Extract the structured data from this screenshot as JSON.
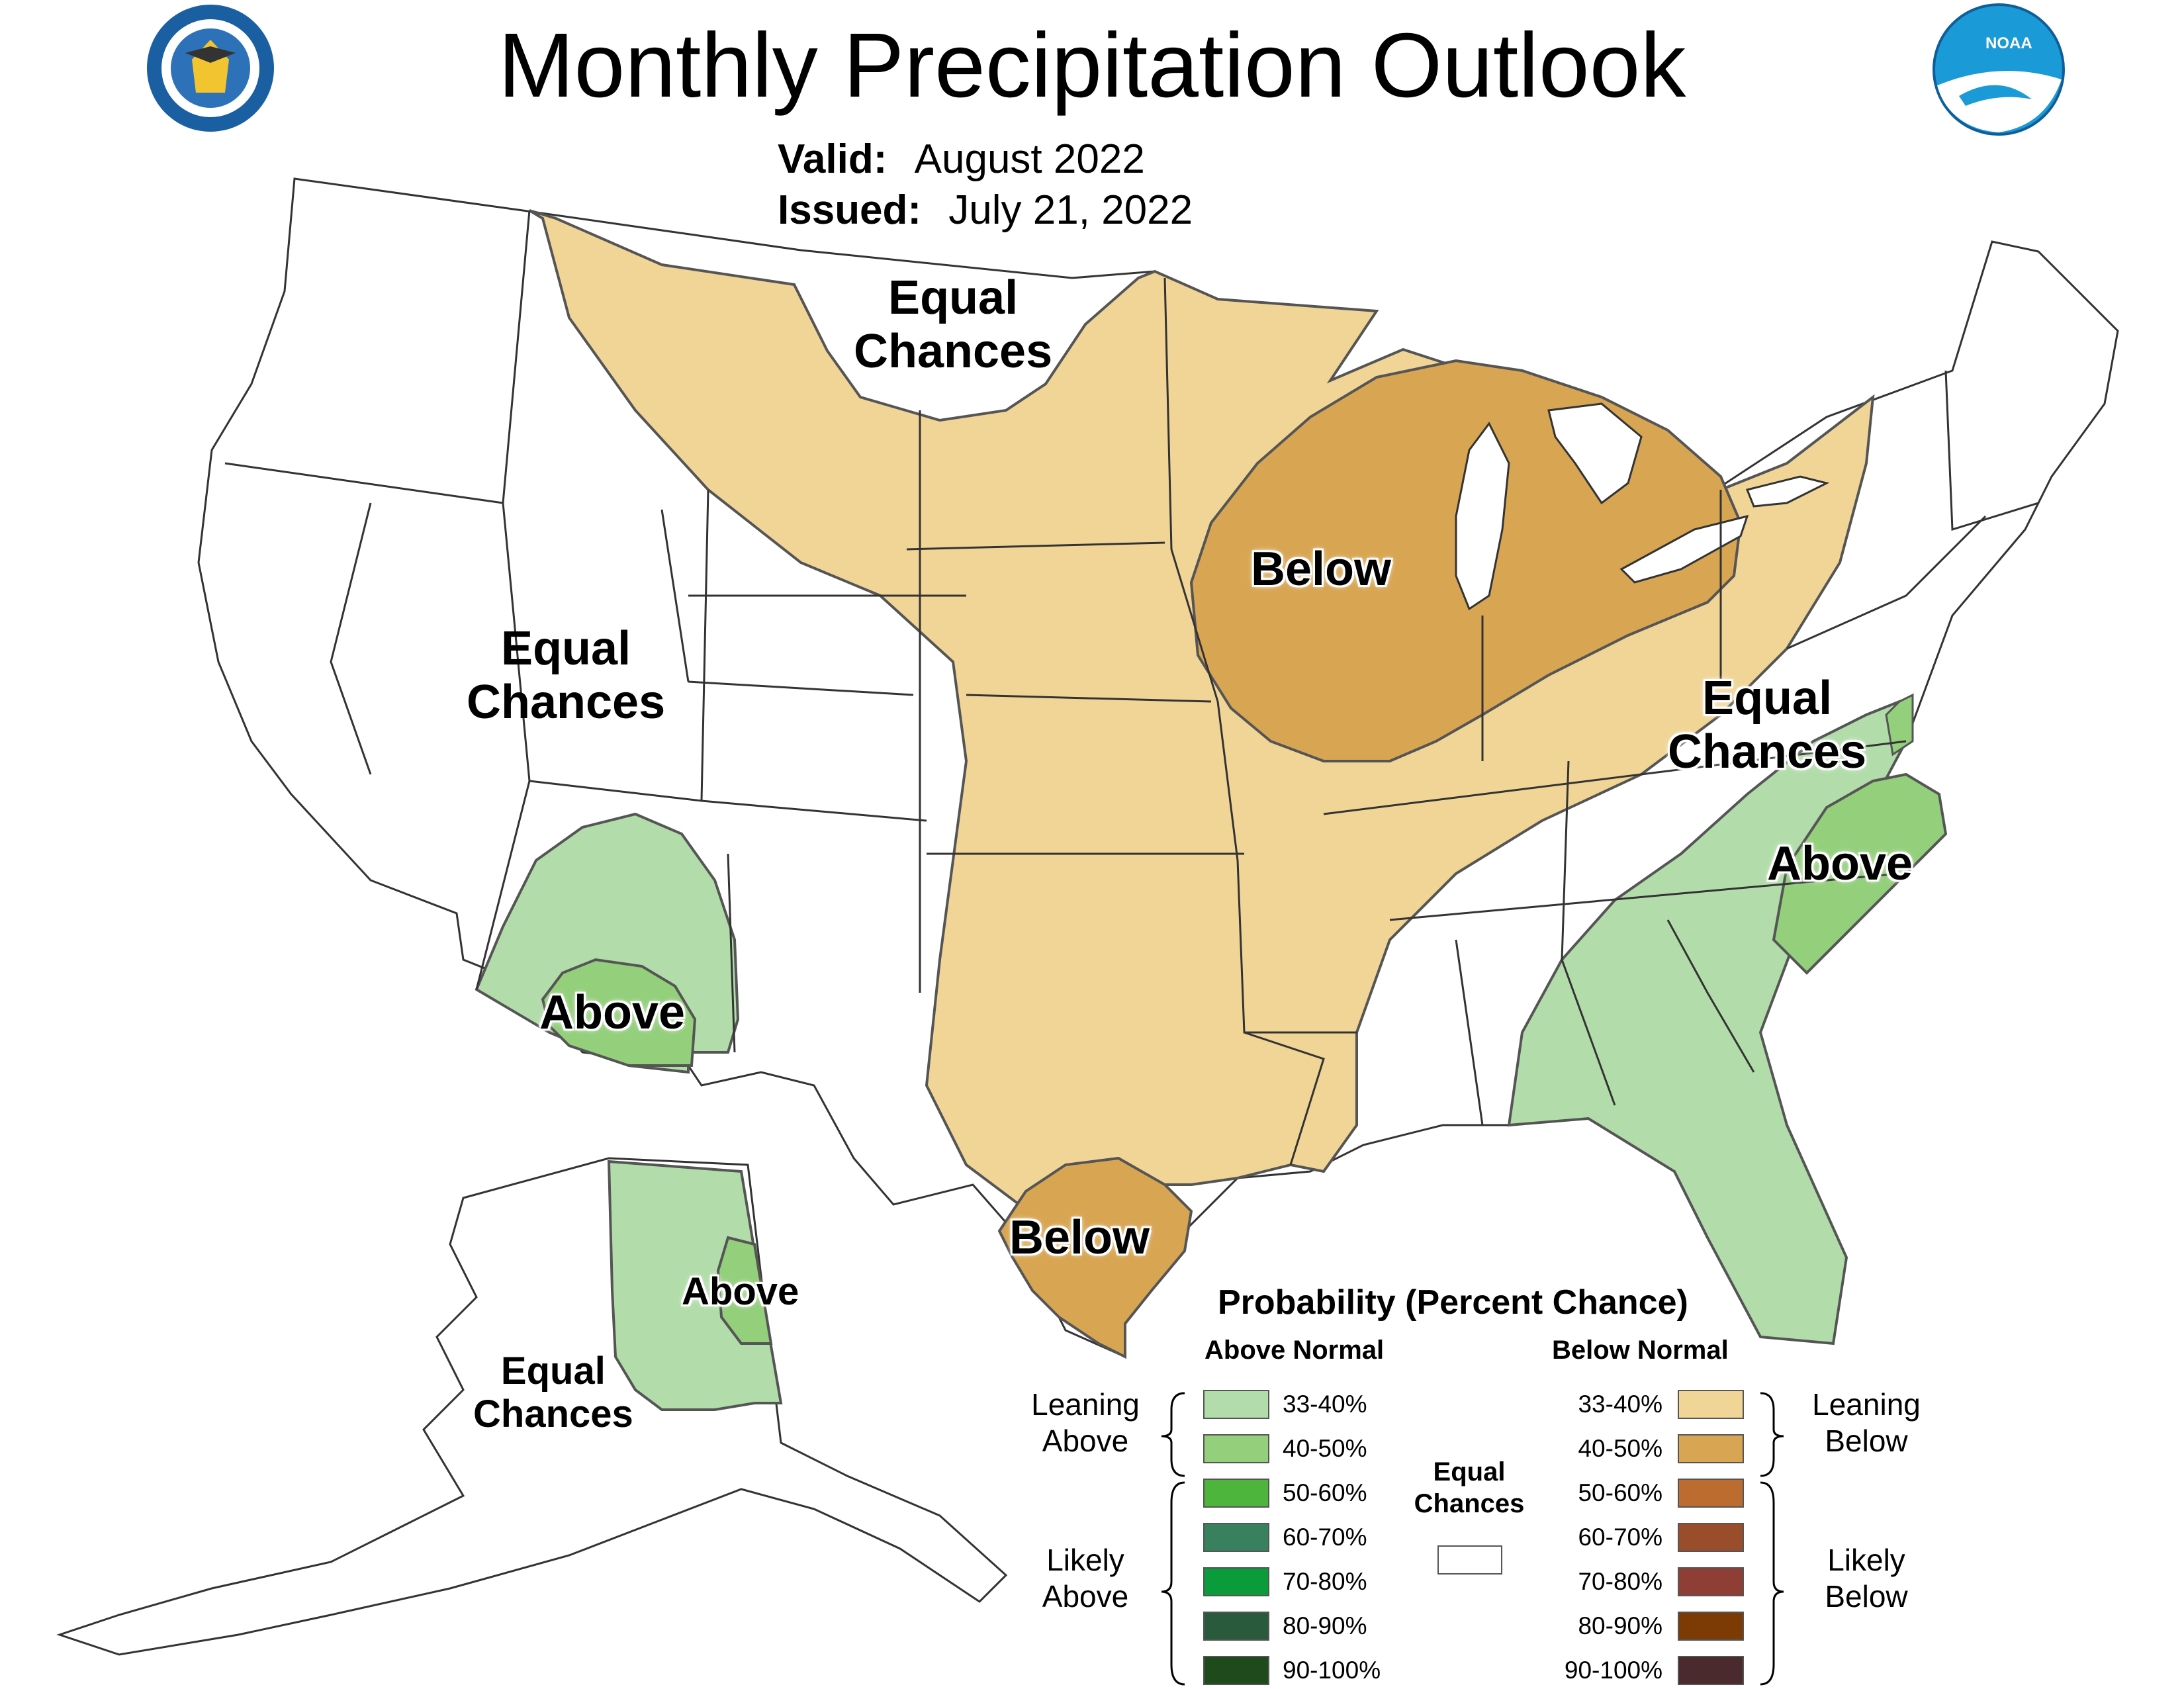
{
  "header": {
    "title": "Monthly Precipitation Outlook",
    "valid_label": "Valid:",
    "valid_value": "August 2022",
    "issued_label": "Issued:",
    "issued_value": "July 21, 2022"
  },
  "logos": {
    "left": "department-of-commerce-seal",
    "right": "noaa-logo",
    "noaa_text": "NOAA"
  },
  "regions": [
    {
      "id": "ec-north",
      "line1": "Equal",
      "line2": "Chances"
    },
    {
      "id": "ec-west",
      "line1": "Equal",
      "line2": "Chances"
    },
    {
      "id": "ec-east",
      "line1": "Equal",
      "line2": "Chances"
    },
    {
      "id": "ec-alaska",
      "line1": "Equal",
      "line2": "Chances"
    },
    {
      "id": "below-midwest",
      "line1": "Below"
    },
    {
      "id": "below-texas",
      "line1": "Below"
    },
    {
      "id": "above-sw",
      "line1": "Above"
    },
    {
      "id": "above-se",
      "line1": "Above"
    },
    {
      "id": "above-ak",
      "line1": "Above"
    }
  ],
  "legend": {
    "title": "Probability (Percent Chance)",
    "above_header": "Above Normal",
    "below_header": "Below Normal",
    "equal_chances_line1": "Equal",
    "equal_chances_line2": "Chances",
    "leaning_above_line1": "Leaning",
    "leaning_above_line2": "Above",
    "likely_above_line1": "Likely",
    "likely_above_line2": "Above",
    "leaning_below_line1": "Leaning",
    "leaning_below_line2": "Below",
    "likely_below_line1": "Likely",
    "likely_below_line2": "Below",
    "above_rows": [
      {
        "label": "33-40%",
        "color": "#b2ddaa"
      },
      {
        "label": "40-50%",
        "color": "#94cf7c"
      },
      {
        "label": "50-60%",
        "color": "#4eb53c"
      },
      {
        "label": "60-70%",
        "color": "#39805f"
      },
      {
        "label": "70-80%",
        "color": "#0a9b3a"
      },
      {
        "label": "80-90%",
        "color": "#2a5a3c"
      },
      {
        "label": "90-100%",
        "color": "#1f4a1c"
      }
    ],
    "below_rows": [
      {
        "label": "33-40%",
        "color": "#f1d597"
      },
      {
        "label": "40-50%",
        "color": "#d8a552"
      },
      {
        "label": "50-60%",
        "color": "#bd6c30"
      },
      {
        "label": "60-70%",
        "color": "#9a4d2b"
      },
      {
        "label": "70-80%",
        "color": "#8e3e34"
      },
      {
        "label": "80-90%",
        "color": "#7c3a05"
      },
      {
        "label": "90-100%",
        "color": "#4a2a2c"
      }
    ]
  },
  "colors": {
    "leaning_above": "#b2ddaa",
    "above_40_50": "#94cf7c",
    "leaning_below": "#f1d597",
    "below_40_50": "#d8a552",
    "equal_chances": "#ffffff",
    "boundary": "#555555"
  }
}
